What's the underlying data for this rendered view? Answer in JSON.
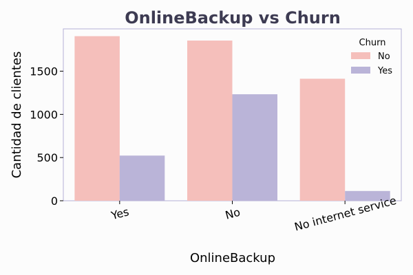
{
  "chart_data": {
    "type": "bar",
    "title": "OnlineBackup vs Churn",
    "xlabel": "OnlineBackup",
    "ylabel": "Cantidad de clientes",
    "categories": [
      "Yes",
      "No",
      "No internet service"
    ],
    "series": [
      {
        "name": "No",
        "values": [
          1906,
          1855,
          1413
        ],
        "color": "#f5bfbb"
      },
      {
        "name": "Yes",
        "values": [
          523,
          1233,
          113
        ],
        "color": "#bab4d8"
      }
    ],
    "ylim": [
      0,
      1990
    ],
    "yticks": [
      0,
      500,
      1000,
      1500
    ],
    "legend": {
      "title": "Churn",
      "placement": "top-right"
    },
    "grid": false,
    "title_color": "#3d3b52",
    "frame_color": "#b3b0d6"
  }
}
